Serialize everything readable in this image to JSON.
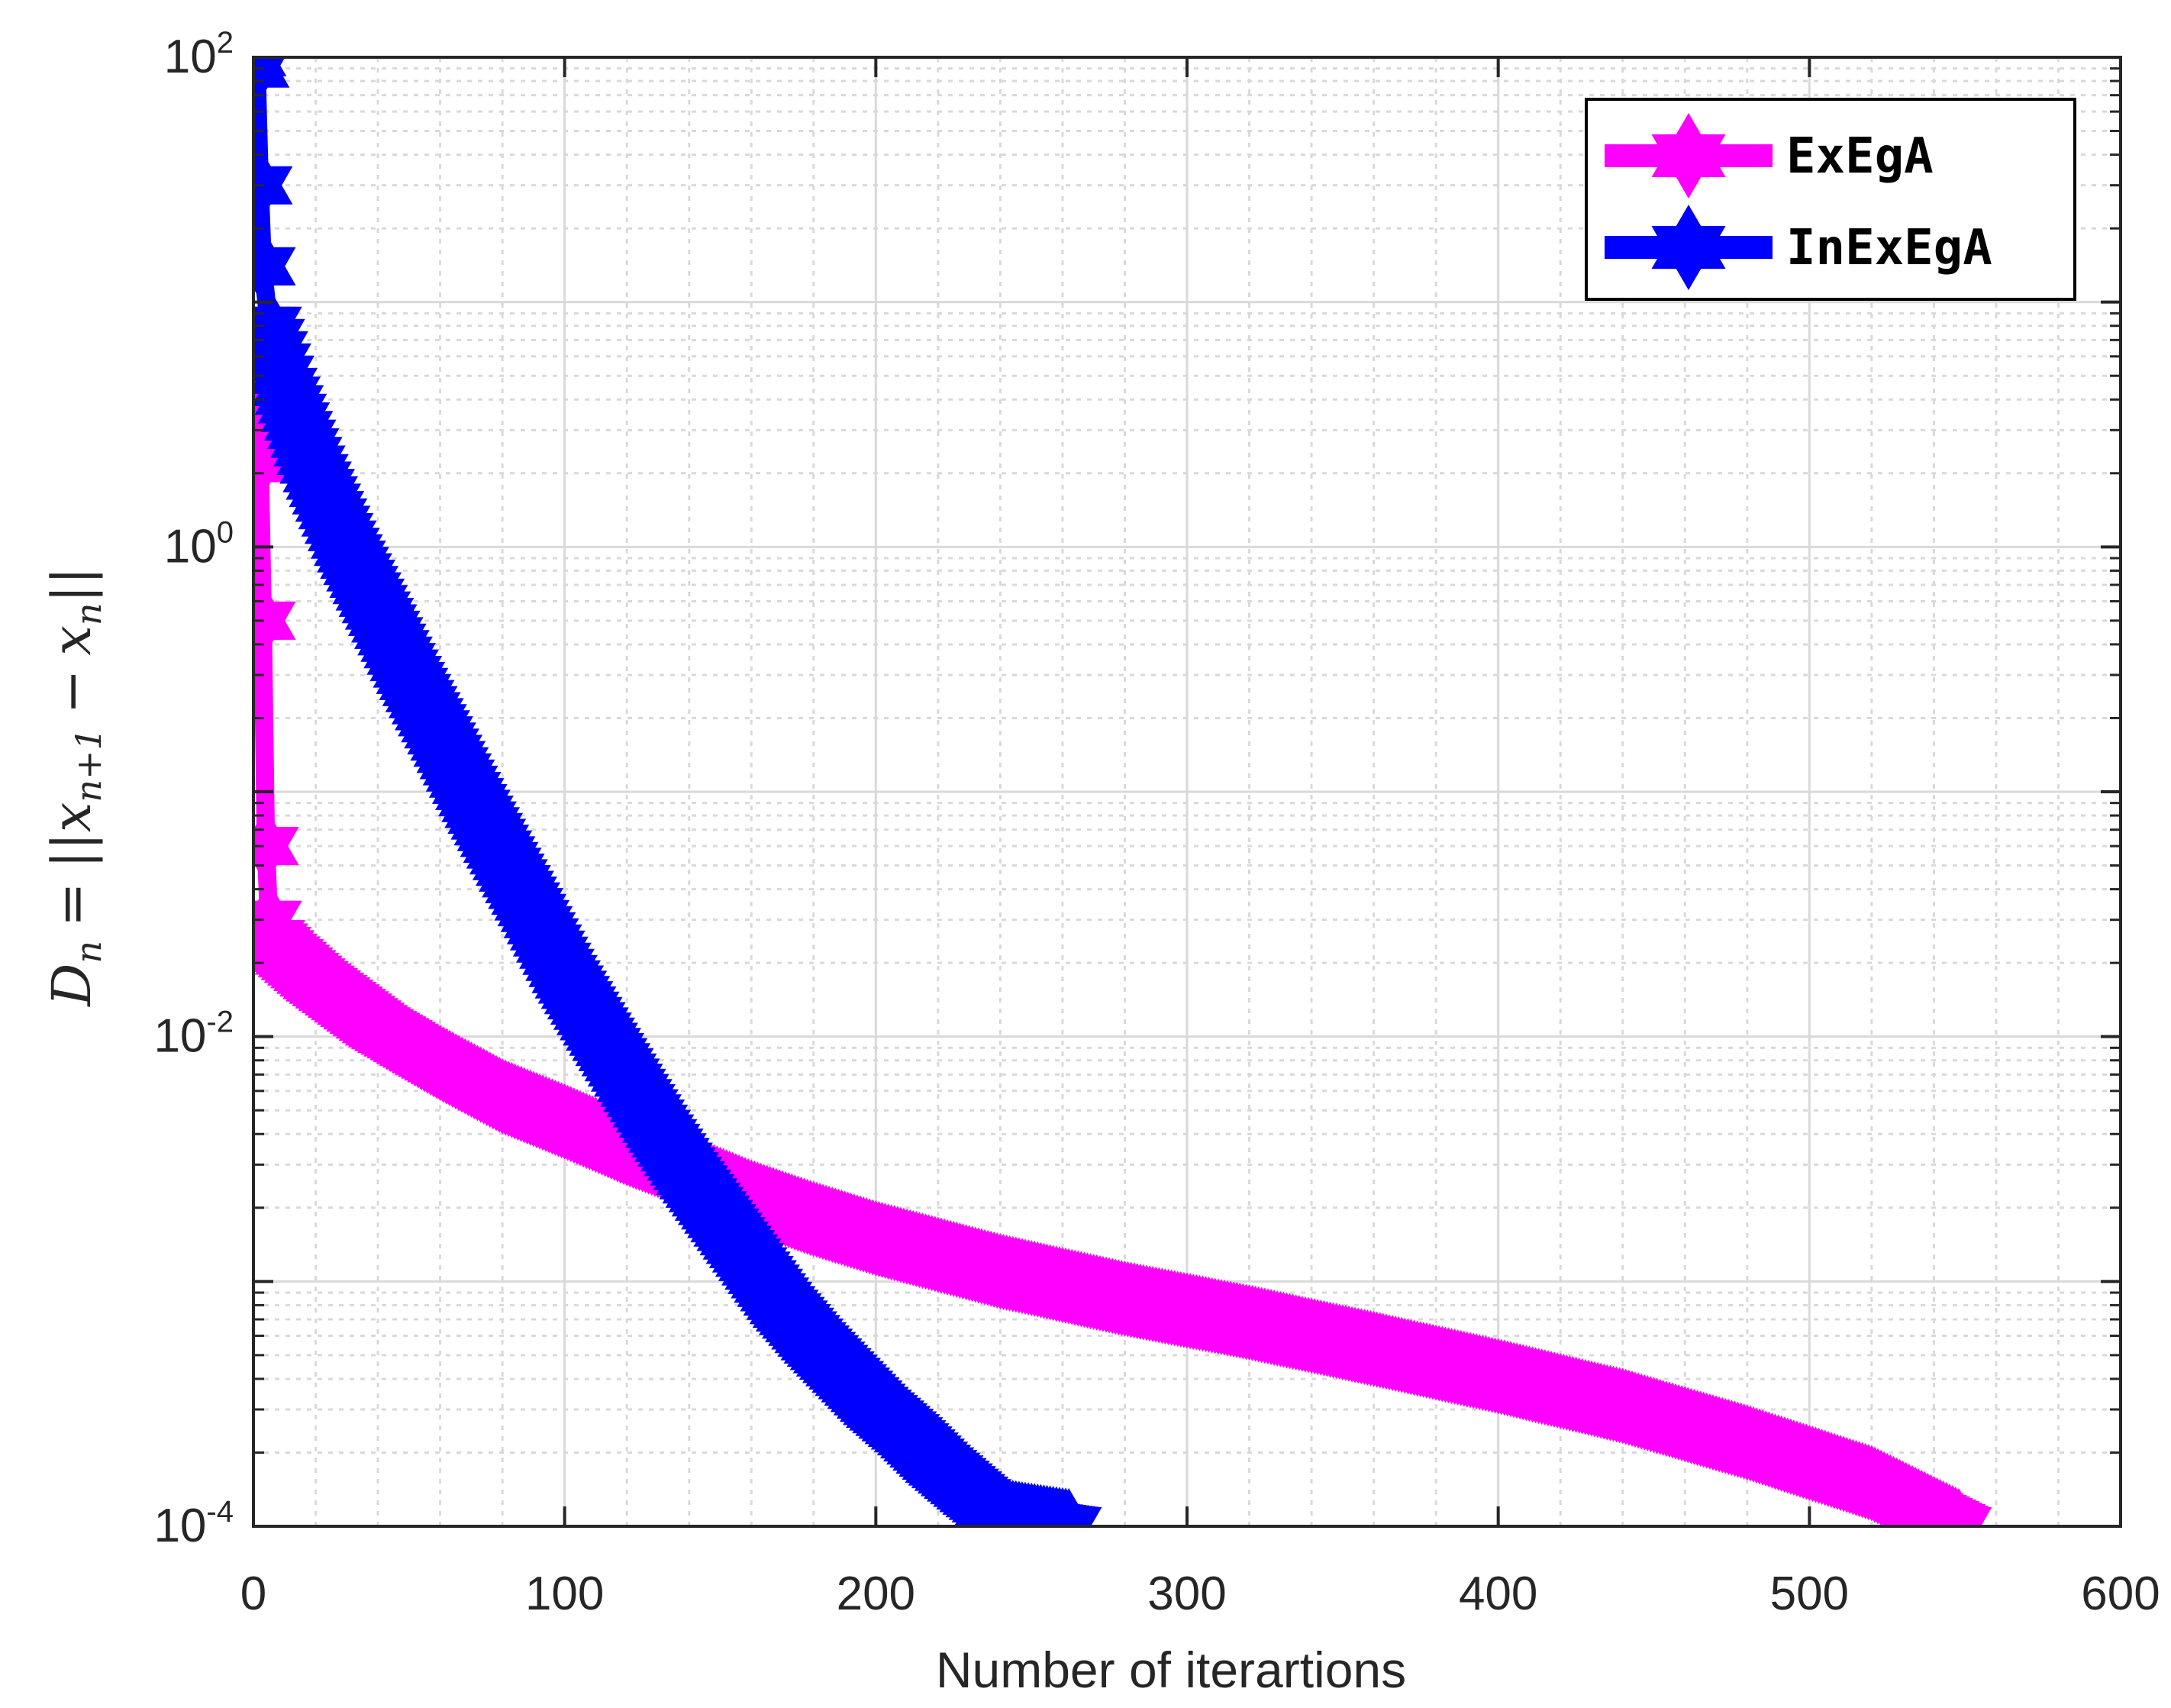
{
  "chart_data": {
    "type": "line",
    "title": "",
    "xlabel": "Number of iterartions",
    "ylabel": {
      "lhs": "D",
      "lhs_sub": "n",
      "rhs": "= ||x_{n+1} − x_n||",
      "part_eq": "=",
      "part_bars": "||",
      "part_x": "x",
      "part_sub_n1": "n+1",
      "part_minus": "−",
      "part_sub_n": "n"
    },
    "x_scale": "linear",
    "y_scale": "log",
    "xlim": [
      0,
      600
    ],
    "ylim": [
      0.0001,
      100
    ],
    "x_ticks": [
      0,
      100,
      200,
      300,
      400,
      500,
      600
    ],
    "x_tick_labels": [
      "0",
      "100",
      "200",
      "300",
      "400",
      "500",
      "600"
    ],
    "y_ticks": [
      {
        "value": 0.0001,
        "base": "10",
        "exp": "-4"
      },
      {
        "value": 0.01,
        "base": "10",
        "exp": "-2"
      },
      {
        "value": 1,
        "base": "10",
        "exp": "0"
      },
      {
        "value": 100,
        "base": "10",
        "exp": "2"
      }
    ],
    "grid": true,
    "legend_position": "top-right",
    "series": [
      {
        "name": "ExEgA",
        "color": "#ff00ff",
        "marker": "hexagram",
        "points": [
          [
            0,
            3.2
          ],
          [
            1,
            3.0
          ],
          [
            2,
            2.2
          ],
          [
            3,
            0.5
          ],
          [
            4,
            0.06
          ],
          [
            5,
            0.03
          ],
          [
            6,
            0.025
          ],
          [
            10,
            0.022
          ],
          [
            20,
            0.017
          ],
          [
            40,
            0.011
          ],
          [
            60,
            0.0078
          ],
          [
            80,
            0.0057
          ],
          [
            100,
            0.0045
          ],
          [
            120,
            0.0035
          ],
          [
            140,
            0.0028
          ],
          [
            160,
            0.0022
          ],
          [
            180,
            0.0018
          ],
          [
            200,
            0.0015
          ],
          [
            240,
            0.0011
          ],
          [
            280,
            0.00085
          ],
          [
            320,
            0.00068
          ],
          [
            360,
            0.00053
          ],
          [
            400,
            0.00041
          ],
          [
            440,
            0.00031
          ],
          [
            480,
            0.00022
          ],
          [
            520,
            0.00015
          ],
          [
            548,
            0.0001
          ]
        ]
      },
      {
        "name": "InExEgA",
        "color": "#0000ff",
        "marker": "hexagram",
        "points": [
          [
            0,
            100
          ],
          [
            1,
            90
          ],
          [
            2,
            30
          ],
          [
            3,
            14
          ],
          [
            5,
            8
          ],
          [
            10,
            4.5
          ],
          [
            20,
            2.0
          ],
          [
            30,
            1.0
          ],
          [
            40,
            0.55
          ],
          [
            50,
            0.3
          ],
          [
            60,
            0.17
          ],
          [
            70,
            0.095
          ],
          [
            80,
            0.055
          ],
          [
            90,
            0.032
          ],
          [
            100,
            0.018
          ],
          [
            110,
            0.011
          ],
          [
            120,
            0.0068
          ],
          [
            130,
            0.0042
          ],
          [
            140,
            0.0027
          ],
          [
            150,
            0.0018
          ],
          [
            160,
            0.0012
          ],
          [
            170,
            0.0008
          ],
          [
            180,
            0.00057
          ],
          [
            190,
            0.00042
          ],
          [
            200,
            0.00031
          ],
          [
            210,
            0.00024
          ],
          [
            220,
            0.00018
          ],
          [
            230,
            0.00014
          ],
          [
            240,
            0.00011
          ],
          [
            262,
            0.0001
          ]
        ]
      }
    ]
  },
  "colors": {
    "axis": "#262626",
    "grid": "#d9d9d9",
    "background": "#ffffff"
  }
}
